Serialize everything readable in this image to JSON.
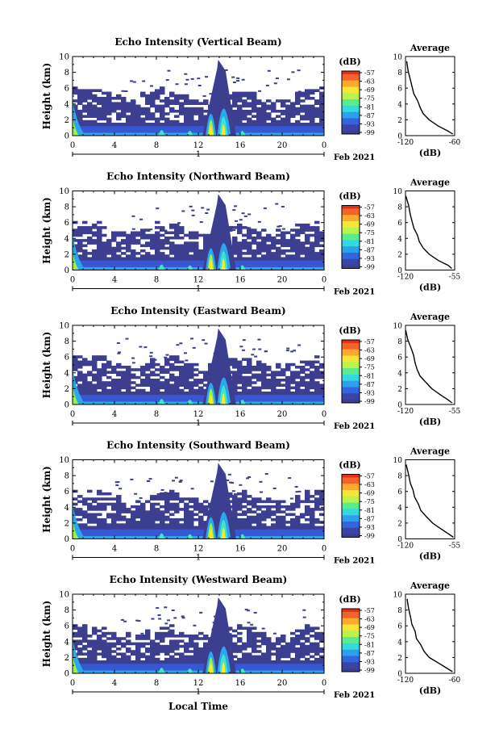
{
  "colorbar": {
    "unit_label": "(dB)",
    "tick_labels": [
      "-57",
      "-63",
      "-69",
      "-75",
      "-81",
      "-87",
      "-93",
      "-99"
    ],
    "colors": [
      "#ef3a1e",
      "#f98a24",
      "#fce82e",
      "#9ef048",
      "#3fe6c8",
      "#2ba7ec",
      "#3758d2",
      "#3c3e90"
    ]
  },
  "xaxis": {
    "ticks": [
      "0",
      "4",
      "8",
      "12",
      "16",
      "20",
      "0"
    ],
    "date_tick": "1",
    "date_label": "Feb 2021",
    "label": "Local Time"
  },
  "yaxis": {
    "label": "Height (km)",
    "ticks": [
      "0",
      "2",
      "4",
      "6",
      "8",
      "10"
    ]
  },
  "avg_title": "Average",
  "avg_xlabel": "(dB)",
  "chart_data": [
    {
      "type": "heatmap",
      "title": "Echo Intensity (Vertical Beam)",
      "xlabel": "Local Time",
      "ylabel": "Height (km)",
      "xlim": [
        0,
        24
      ],
      "ylim": [
        0,
        10
      ],
      "storm_hours": [
        13,
        14
      ],
      "avg_profile": {
        "xticks": [
          "-120",
          "-60"
        ],
        "xlim": [
          -120,
          -60
        ],
        "x": [
          -119,
          -117,
          -114,
          -112,
          -109,
          -106,
          -102,
          -98,
          -92,
          -80,
          -68,
          -62
        ],
        "y": [
          9.4,
          8.2,
          7.0,
          6.2,
          5.3,
          4.4,
          3.6,
          2.8,
          2.0,
          1.2,
          0.6,
          0.2
        ]
      }
    },
    {
      "type": "heatmap",
      "title": "Echo Intensity (Northward Beam)",
      "xlabel": "Local Time",
      "ylabel": "Height (km)",
      "xlim": [
        0,
        24
      ],
      "ylim": [
        0,
        10
      ],
      "storm_hours": [
        13,
        14
      ],
      "avg_profile": {
        "xticks": [
          "-120",
          "-55"
        ],
        "xlim": [
          -120,
          -55
        ],
        "x": [
          -119,
          -116,
          -113,
          -111,
          -108,
          -105,
          -101,
          -96,
          -88,
          -76,
          -64,
          -58
        ],
        "y": [
          9.4,
          8.2,
          7.0,
          6.2,
          5.3,
          4.4,
          3.6,
          2.8,
          2.0,
          1.2,
          0.6,
          0.2
        ]
      }
    },
    {
      "type": "heatmap",
      "title": "Echo Intensity (Eastward Beam)",
      "xlabel": "Local Time",
      "ylabel": "Height (km)",
      "xlim": [
        0,
        24
      ],
      "ylim": [
        0,
        10
      ],
      "storm_hours": [
        13,
        14
      ],
      "avg_profile": {
        "xticks": [
          "-120",
          "-55"
        ],
        "xlim": [
          -120,
          -55
        ],
        "x": [
          -119,
          -116,
          -113,
          -110,
          -108,
          -104,
          -100,
          -94,
          -86,
          -74,
          -64,
          -58
        ],
        "y": [
          9.4,
          8.2,
          7.0,
          6.2,
          5.3,
          4.4,
          3.6,
          2.8,
          2.0,
          1.2,
          0.6,
          0.2
        ]
      }
    },
    {
      "type": "heatmap",
      "title": "Echo Intensity (Southward Beam)",
      "xlabel": "Local Time",
      "ylabel": "Height (km)",
      "xlim": [
        0,
        24
      ],
      "ylim": [
        0,
        10
      ],
      "storm_hours": [
        13,
        14
      ],
      "avg_profile": {
        "xticks": [
          "-120",
          "-55"
        ],
        "xlim": [
          -120,
          -55
        ],
        "x": [
          -119,
          -116,
          -113,
          -110,
          -107,
          -104,
          -99,
          -93,
          -85,
          -73,
          -63,
          -57
        ],
        "y": [
          9.4,
          8.2,
          7.0,
          6.2,
          5.3,
          4.4,
          3.6,
          2.8,
          2.0,
          1.2,
          0.6,
          0.2
        ]
      }
    },
    {
      "type": "heatmap",
      "title": "Echo Intensity (Westward Beam)",
      "xlabel": "Local Time",
      "ylabel": "Height (km)",
      "xlim": [
        0,
        24
      ],
      "ylim": [
        0,
        10
      ],
      "storm_hours": [
        13,
        14
      ],
      "avg_profile": {
        "xticks": [
          "-120",
          "-60"
        ],
        "xlim": [
          -120,
          -60
        ],
        "x": [
          -119,
          -117,
          -114,
          -112,
          -109,
          -106,
          -102,
          -97,
          -90,
          -79,
          -68,
          -62
        ],
        "y": [
          9.4,
          8.2,
          7.0,
          6.2,
          5.3,
          4.4,
          3.6,
          2.8,
          2.0,
          1.2,
          0.6,
          0.2
        ]
      }
    }
  ]
}
